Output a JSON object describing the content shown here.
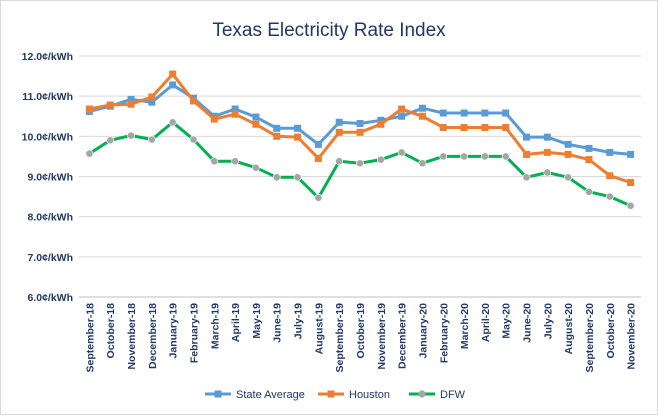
{
  "chart_data": {
    "type": "line",
    "title": "Texas Electricity Rate Index",
    "xlabel": "",
    "ylabel": "",
    "ylim": [
      6.0,
      12.0
    ],
    "yticks": [
      {
        "value": 6.0,
        "label": "6.0¢/kWh"
      },
      {
        "value": 7.0,
        "label": "7.0¢/kWh"
      },
      {
        "value": 8.0,
        "label": "8.0¢/kWh"
      },
      {
        "value": 9.0,
        "label": "9.0¢/kWh"
      },
      {
        "value": 10.0,
        "label": "10.0¢/kWh"
      },
      {
        "value": 11.0,
        "label": "11.0¢/kWh"
      },
      {
        "value": 12.0,
        "label": "12.0¢/kWh"
      }
    ],
    "grid": "horizontal",
    "legend_position": "bottom",
    "categories": [
      "September-18",
      "October-18",
      "November-18",
      "December-18",
      "January-19",
      "February-19",
      "March-19",
      "April-19",
      "May-19",
      "June-19",
      "July-19",
      "August-19",
      "September-19",
      "October-19",
      "November-19",
      "December-19",
      "January-20",
      "February-20",
      "March-20",
      "April-20",
      "May-20",
      "June-20",
      "July-20",
      "August-20",
      "September-20",
      "October-20",
      "November-20"
    ],
    "series": [
      {
        "name": "State Average",
        "color": "#5b9bd5",
        "values": [
          10.62,
          10.75,
          10.92,
          10.85,
          11.28,
          10.95,
          10.5,
          10.68,
          10.48,
          10.2,
          10.2,
          9.8,
          10.35,
          10.32,
          10.4,
          10.5,
          10.7,
          10.58,
          10.58,
          10.58,
          10.58,
          9.98,
          9.98,
          9.8,
          9.7,
          9.6,
          9.55
        ]
      },
      {
        "name": "Houston",
        "color": "#ed7d31",
        "values": [
          10.68,
          10.78,
          10.8,
          10.98,
          11.55,
          10.88,
          10.43,
          10.55,
          10.3,
          10.0,
          9.98,
          9.45,
          10.1,
          10.1,
          10.3,
          10.68,
          10.5,
          10.22,
          10.22,
          10.22,
          10.22,
          9.55,
          9.6,
          9.55,
          9.42,
          9.02,
          8.85
        ]
      },
      {
        "name": "DFW",
        "color": "#00b050",
        "marker_color": "#a5a5a5",
        "values": [
          9.57,
          9.9,
          10.02,
          9.92,
          10.35,
          9.92,
          9.38,
          9.38,
          9.22,
          8.98,
          8.98,
          8.47,
          9.38,
          9.33,
          9.42,
          9.6,
          9.33,
          9.5,
          9.5,
          9.5,
          9.5,
          8.98,
          9.1,
          8.98,
          8.62,
          8.5,
          8.27
        ]
      }
    ]
  }
}
